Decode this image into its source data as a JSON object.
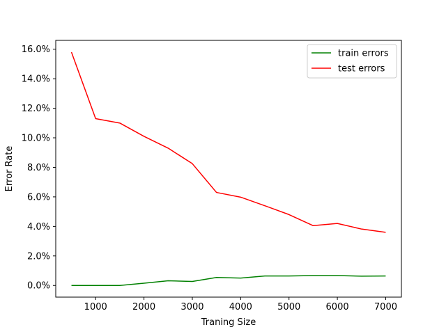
{
  "chart_data": {
    "type": "line",
    "title": "",
    "xlabel": "Traning Size",
    "ylabel": "Error Rate",
    "x": [
      500,
      1000,
      1500,
      2000,
      2500,
      3000,
      3500,
      4000,
      4500,
      5000,
      5500,
      6000,
      6500,
      7000
    ],
    "series": [
      {
        "name": "train errors",
        "color": "#008000",
        "values": [
          0.0,
          0.0,
          0.0,
          0.15,
          0.32,
          0.27,
          0.54,
          0.5,
          0.64,
          0.64,
          0.67,
          0.67,
          0.63,
          0.64
        ]
      },
      {
        "name": "test errors",
        "color": "#ff0000",
        "values": [
          15.8,
          11.3,
          11.0,
          10.1,
          9.3,
          8.25,
          6.3,
          5.98,
          5.4,
          4.8,
          4.05,
          4.2,
          3.82,
          3.6
        ]
      }
    ],
    "xlim": [
      175,
      7325
    ],
    "ylim": [
      -0.79,
      16.6
    ],
    "xticks": [
      1000,
      2000,
      3000,
      4000,
      5000,
      6000,
      7000
    ],
    "xtick_labels": [
      "1000",
      "2000",
      "3000",
      "4000",
      "5000",
      "6000",
      "7000"
    ],
    "yticks": [
      0,
      2,
      4,
      6,
      8,
      10,
      12,
      14,
      16
    ],
    "ytick_labels": [
      "0.0%",
      "2.0%",
      "4.0%",
      "6.0%",
      "8.0%",
      "10.0%",
      "12.0%",
      "14.0%",
      "16.0%"
    ],
    "legend_position": "top-right",
    "grid": false
  }
}
